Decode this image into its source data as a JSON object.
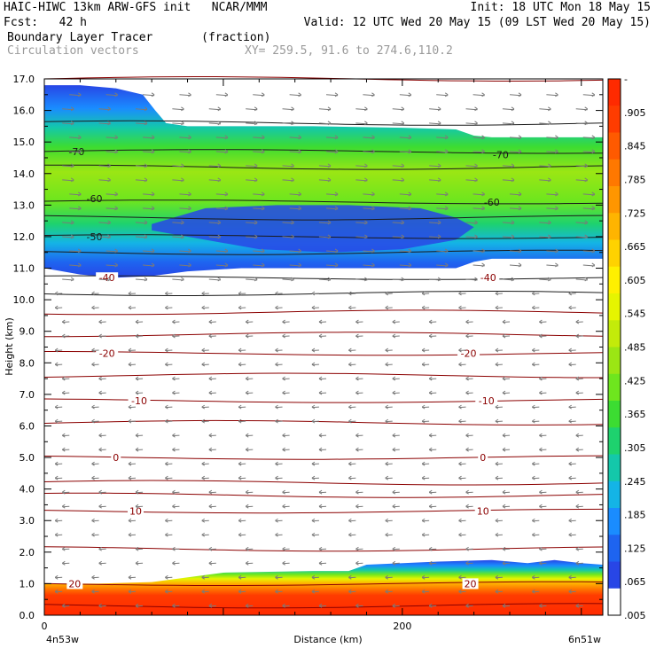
{
  "header": {
    "line1_left": "HAIC-HIWC 13km ARW-GFS init   NCAR/MMM",
    "line1_right": "Init: 18 UTC Mon 18 May 15",
    "line2_left": "Fcst:   42 h",
    "line2_right": "Valid: 12 UTC Wed 20 May 15 (09 LST Wed 20 May 15)",
    "line3_left": "Boundary Layer Tracer       (fraction)",
    "line4_left": "Circulation vectors",
    "line4_right": "XY= 259.5, 91.6 to 274.6,110.2"
  },
  "chart_data": {
    "type": "heatmap",
    "title": "Boundary Layer Tracer",
    "units": "(fraction)",
    "overlay": "Circulation vectors",
    "xlabel": "Distance (km)",
    "ylabel": "Height (km)",
    "xlim": [
      0,
      312
    ],
    "ylim": [
      0,
      17
    ],
    "x_ticks": [
      {
        "value": 0,
        "label": "0"
      },
      {
        "value": 200,
        "label": "200"
      }
    ],
    "x_end_labels": {
      "left": "4n53w",
      "right": "6n51w"
    },
    "y_ticks": [
      "0.0",
      "1.0",
      "2.0",
      "3.0",
      "4.0",
      "5.0",
      "6.0",
      "7.0",
      "8.0",
      "9.0",
      "10.0",
      "11.0",
      "12.0",
      "13.0",
      "14.0",
      "15.0",
      "16.0",
      "17.0"
    ],
    "colorbar": {
      "labels": [
        "-",
        ".905",
        ".845",
        ".785",
        ".725",
        ".665",
        ".605",
        ".545",
        ".485",
        ".425",
        ".365",
        ".305",
        ".245",
        ".185",
        ".125",
        ".065",
        ".005"
      ],
      "colors": [
        "#ff2a00",
        "#ff3c00",
        "#ff5a00",
        "#ff7800",
        "#ff9600",
        "#ffb400",
        "#ffd200",
        "#fff000",
        "#e6f500",
        "#c3eb0a",
        "#9be614",
        "#6ee61e",
        "#3cdc32",
        "#1ed26e",
        "#14c8aa",
        "#14b4e6",
        "#1a8cff",
        "#1e64f0",
        "#2846e6",
        "#ffffff"
      ]
    },
    "features": {
      "upper_layer": {
        "base_km_range": [
          10.7,
          11.3
        ],
        "top_km_range": [
          15.0,
          16.8
        ],
        "peak_value_range": [
          0.245,
          0.365
        ]
      },
      "boundary_layer": {
        "top_km_range": [
          1.0,
          1.75
        ],
        "near_surface_value": 0.905
      }
    },
    "contours": [
      {
        "label": "-70",
        "height_km": 14.7
      },
      {
        "label": "-60",
        "height_km": 13.1
      },
      {
        "label": "-50",
        "height_km": 12.0
      },
      {
        "label": "-40",
        "height_km": 10.7
      },
      {
        "label": "-20",
        "height_km": 8.3
      },
      {
        "label": "-10",
        "height_km": 6.8
      },
      {
        "label": "0",
        "height_km": 5.0
      },
      {
        "label": "10",
        "height_km": 3.3
      },
      {
        "label": "20",
        "height_km": 1.0
      }
    ],
    "contour_labels": [
      {
        "label": "-70",
        "x_km": 18,
        "y_km": 14.7
      },
      {
        "label": "-70",
        "x_km": 255,
        "y_km": 14.6
      },
      {
        "label": "-60",
        "x_km": 28,
        "y_km": 13.2
      },
      {
        "label": "-60",
        "x_km": 250,
        "y_km": 13.1
      },
      {
        "label": "-50",
        "x_km": 28,
        "y_km": 12.0
      },
      {
        "label": "-40",
        "x_km": 35,
        "y_km": 10.7
      },
      {
        "label": "-40",
        "x_km": 248,
        "y_km": 10.7
      },
      {
        "label": "-20",
        "x_km": 35,
        "y_km": 8.3
      },
      {
        "label": "-20",
        "x_km": 237,
        "y_km": 8.3
      },
      {
        "label": "-10",
        "x_km": 53,
        "y_km": 6.8
      },
      {
        "label": "-10",
        "x_km": 247,
        "y_km": 6.8
      },
      {
        "label": "0",
        "x_km": 40,
        "y_km": 5.0
      },
      {
        "label": "0",
        "x_km": 245,
        "y_km": 5.0
      },
      {
        "label": "10",
        "x_km": 51,
        "y_km": 3.3
      },
      {
        "label": "10",
        "x_km": 245,
        "y_km": 3.3
      },
      {
        "label": "20",
        "x_km": 17,
        "y_km": 1.0
      },
      {
        "label": "20",
        "x_km": 238,
        "y_km": 1.0
      }
    ]
  }
}
